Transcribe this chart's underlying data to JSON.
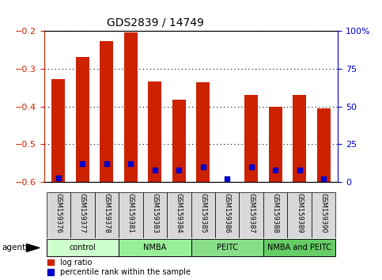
{
  "title": "GDS2839 / 14749",
  "samples": [
    "GSM159376",
    "GSM159377",
    "GSM159378",
    "GSM159381",
    "GSM159383",
    "GSM159384",
    "GSM159385",
    "GSM159386",
    "GSM159387",
    "GSM159388",
    "GSM159389",
    "GSM159390"
  ],
  "log_ratio": [
    -0.328,
    -0.27,
    -0.228,
    -0.205,
    -0.335,
    -0.382,
    -0.336,
    -0.6,
    -0.37,
    -0.4,
    -0.37,
    -0.405
  ],
  "percentile_rank": [
    2.5,
    12,
    12,
    12,
    8,
    8,
    10,
    2,
    10,
    8,
    8,
    2
  ],
  "bar_bottom": -0.6,
  "ylim_left": [
    -0.6,
    -0.2
  ],
  "ylim_right": [
    0,
    100
  ],
  "yticks_left": [
    -0.6,
    -0.5,
    -0.4,
    -0.3,
    -0.2
  ],
  "yticks_right": [
    0,
    25,
    50,
    75,
    100
  ],
  "ytick_labels_right": [
    "0",
    "25",
    "50",
    "75",
    "100%"
  ],
  "bar_color": "#CC2200",
  "percentile_color": "#0000CC",
  "agent_groups": [
    {
      "label": "control",
      "start": 0,
      "end": 3,
      "color": "#CCFFCC"
    },
    {
      "label": "NMBA",
      "start": 3,
      "end": 6,
      "color": "#99EE99"
    },
    {
      "label": "PEITC",
      "start": 6,
      "end": 9,
      "color": "#88DD88"
    },
    {
      "label": "NMBA and PEITC",
      "start": 9,
      "end": 12,
      "color": "#66CC66"
    }
  ],
  "agent_label": "agent",
  "legend_items": [
    {
      "label": "log ratio",
      "color": "#CC2200"
    },
    {
      "label": "percentile rank within the sample",
      "color": "#0000CC"
    }
  ],
  "bar_width": 0.55,
  "tick_label_color_left": "#CC2200",
  "tick_label_color_right": "#0000CC",
  "title_fontsize": 10,
  "tick_fontsize": 8,
  "sample_fontsize": 6,
  "legend_fontsize": 7,
  "agent_fontsize": 7
}
